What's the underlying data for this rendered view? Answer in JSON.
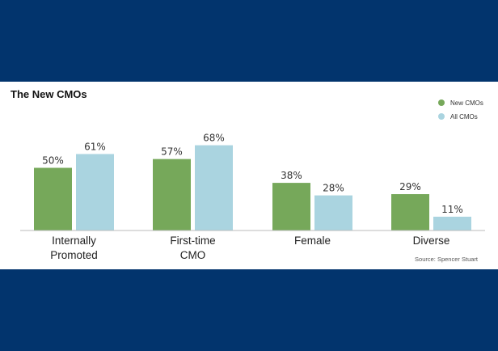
{
  "colors": {
    "background": "#02346d",
    "panel": "#ffffff",
    "axis": "#bbbbbb"
  },
  "chart_data": {
    "type": "bar",
    "title": "The New CMOs",
    "source": "Source: Spencer Stuart",
    "legend_position": "top-right",
    "grid": false,
    "categories": [
      [
        "Internally",
        "Promoted"
      ],
      [
        "First-time",
        "CMO"
      ],
      [
        "Female"
      ],
      [
        "Diverse"
      ]
    ],
    "series": [
      {
        "name": "New CMOs",
        "color": "#76a85a",
        "values": [
          50,
          57,
          38,
          29
        ],
        "labels": [
          "50%",
          "57%",
          "38%",
          "29%"
        ]
      },
      {
        "name": "All CMOs",
        "color": "#aad4e0",
        "values": [
          61,
          68,
          28,
          11
        ],
        "labels": [
          "61%",
          "68%",
          "28%",
          "11%"
        ]
      }
    ],
    "ylim": [
      0,
      100
    ]
  }
}
